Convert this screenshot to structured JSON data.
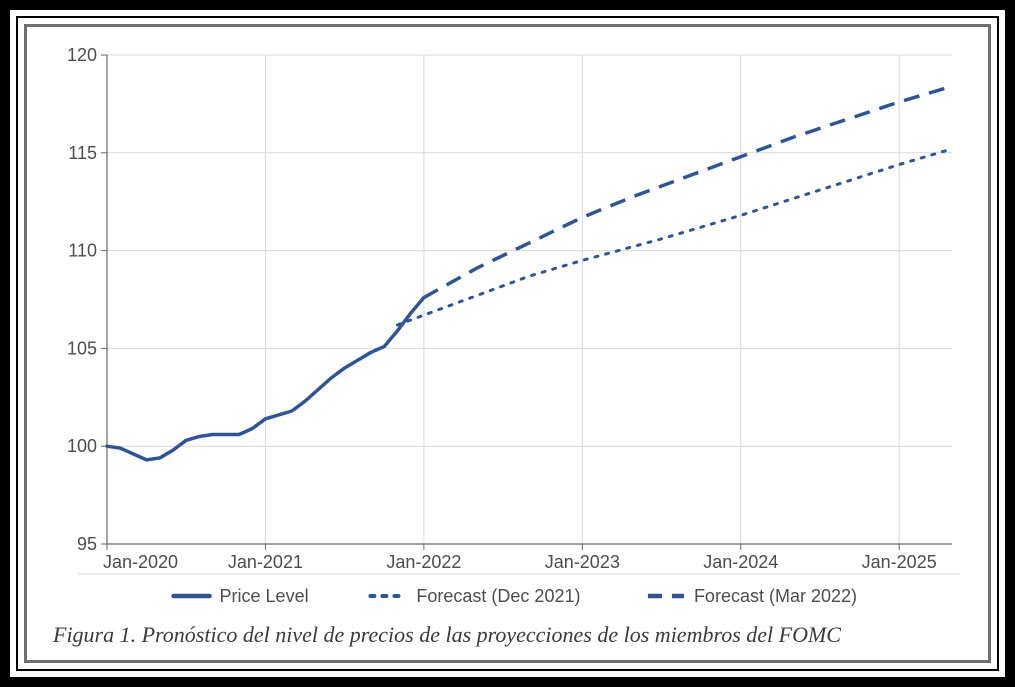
{
  "caption": "Figura 1. Pronóstico del nivel de precios de las proyecciones de los miembros del FOMC",
  "chart": {
    "type": "line",
    "background_color": "#ffffff",
    "grid_color": "#d9d9d9",
    "axis_color": "#666666",
    "tick_font_color": "#4d4d4d",
    "tick_font_size": 18,
    "legend_font_size": 18,
    "legend_font_color": "#4d4d4d",
    "legend_position": "bottom",
    "legend_separator_color": "#d9d9d9",
    "x": {
      "min": 0,
      "max": 64,
      "grid_at": [
        0,
        12,
        24,
        36,
        48,
        60
      ],
      "tick_labels": [
        "Jan-2020",
        "Jan-2021",
        "Jan-2022",
        "Jan-2023",
        "Jan-2024",
        "Jan-2025"
      ]
    },
    "y": {
      "min": 95,
      "max": 120,
      "ticks": [
        95,
        100,
        105,
        110,
        115,
        120
      ]
    },
    "series": [
      {
        "name": "Price Level",
        "label": "Price Level",
        "color": "#2f5597",
        "line_width": 3.5,
        "dash": "solid",
        "points": [
          [
            0,
            100.0
          ],
          [
            1,
            99.9
          ],
          [
            2,
            99.6
          ],
          [
            3,
            99.3
          ],
          [
            4,
            99.4
          ],
          [
            5,
            99.8
          ],
          [
            6,
            100.3
          ],
          [
            7,
            100.5
          ],
          [
            8,
            100.6
          ],
          [
            9,
            100.6
          ],
          [
            10,
            100.6
          ],
          [
            11,
            100.9
          ],
          [
            12,
            101.4
          ],
          [
            13,
            101.6
          ],
          [
            14,
            101.8
          ],
          [
            15,
            102.3
          ],
          [
            16,
            102.9
          ],
          [
            17,
            103.5
          ],
          [
            18,
            104.0
          ],
          [
            19,
            104.4
          ],
          [
            20,
            104.8
          ],
          [
            21,
            105.1
          ],
          [
            22,
            105.9
          ],
          [
            23,
            106.8
          ],
          [
            24,
            107.6
          ]
        ]
      },
      {
        "name": "Forecast (Dec 2021)",
        "label": "Forecast (Dec 2021)",
        "color": "#2f5597",
        "line_width": 3,
        "dash": "dotted",
        "dash_pattern": "3 8",
        "points": [
          [
            22,
            106.2
          ],
          [
            24,
            106.7
          ],
          [
            28,
            107.7
          ],
          [
            32,
            108.7
          ],
          [
            36,
            109.5
          ],
          [
            42,
            110.6
          ],
          [
            48,
            111.8
          ],
          [
            54,
            113.1
          ],
          [
            60,
            114.4
          ],
          [
            64,
            115.2
          ]
        ]
      },
      {
        "name": "Forecast (Mar 2022)",
        "label": "Forecast (Mar 2022)",
        "color": "#2f5597",
        "line_width": 3.5,
        "dash": "dashed",
        "dash_pattern": "16 10",
        "points": [
          [
            24,
            107.6
          ],
          [
            28,
            109.1
          ],
          [
            32,
            110.4
          ],
          [
            36,
            111.7
          ],
          [
            40,
            112.8
          ],
          [
            44,
            113.8
          ],
          [
            48,
            114.8
          ],
          [
            52,
            115.8
          ],
          [
            56,
            116.7
          ],
          [
            60,
            117.6
          ],
          [
            64,
            118.4
          ]
        ]
      }
    ]
  }
}
